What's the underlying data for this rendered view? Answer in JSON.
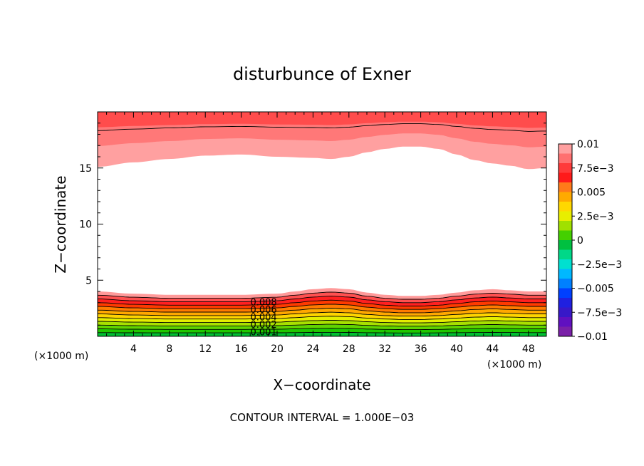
{
  "chart_data": {
    "type": "contour",
    "title": "disturbunce of Exner",
    "xlabel": "X−coordinate",
    "ylabel": "Z−coordinate",
    "x_units_left": "(×1000 m)",
    "x_units_right": "(×1000 m)",
    "xlim": [
      0,
      50
    ],
    "ylim": [
      0,
      20
    ],
    "x_ticks": [
      4,
      8,
      12,
      16,
      20,
      24,
      28,
      32,
      36,
      40,
      44,
      48
    ],
    "y_ticks": [
      5,
      10,
      15
    ],
    "colorbar": {
      "labels": [
        "0.01",
        "7.5e−3",
        "0.005",
        "2.5e−3",
        "0",
        "−2.5e−3",
        "−0.005",
        "−7.5e−3",
        "−0.01"
      ],
      "colors": [
        "#ffa0a0",
        "#ff7070",
        "#ff3a3a",
        "#ff1a1a",
        "#ff7a1a",
        "#ffaa00",
        "#ffd800",
        "#e8ee00",
        "#a0e000",
        "#44d000",
        "#00c040",
        "#00d888",
        "#00e0d0",
        "#00b8ff",
        "#0080ff",
        "#0040ff",
        "#2020e0",
        "#3818c8",
        "#6010c0",
        "#7a20a8"
      ]
    },
    "contour_labels": [
      "0.008",
      "0.006",
      "0.004",
      "0.002",
      "0.001"
    ],
    "contour_interval": "CONTOUR INTERVAL = 1.000E−03",
    "bottom_band": {
      "x": [
        0,
        4,
        8,
        12,
        16,
        20,
        22,
        24,
        26,
        28,
        30,
        32,
        34,
        36,
        38,
        40,
        42,
        44,
        46,
        48,
        50
      ],
      "top_z": [
        4.0,
        3.8,
        3.7,
        3.7,
        3.7,
        3.8,
        4.0,
        4.2,
        4.3,
        4.2,
        3.9,
        3.7,
        3.6,
        3.6,
        3.7,
        3.9,
        4.1,
        4.2,
        4.1,
        4.0,
        4.0
      ]
    },
    "top_band": {
      "x": [
        0,
        4,
        8,
        12,
        16,
        20,
        24,
        26,
        28,
        30,
        32,
        34,
        36,
        38,
        40,
        42,
        44,
        46,
        48,
        50
      ],
      "bottom_z": [
        15.1,
        15.5,
        15.8,
        16.1,
        16.2,
        16.0,
        15.9,
        15.8,
        16.0,
        16.4,
        16.7,
        16.9,
        16.9,
        16.7,
        16.2,
        15.7,
        15.4,
        15.2,
        14.9,
        15.0
      ]
    }
  }
}
